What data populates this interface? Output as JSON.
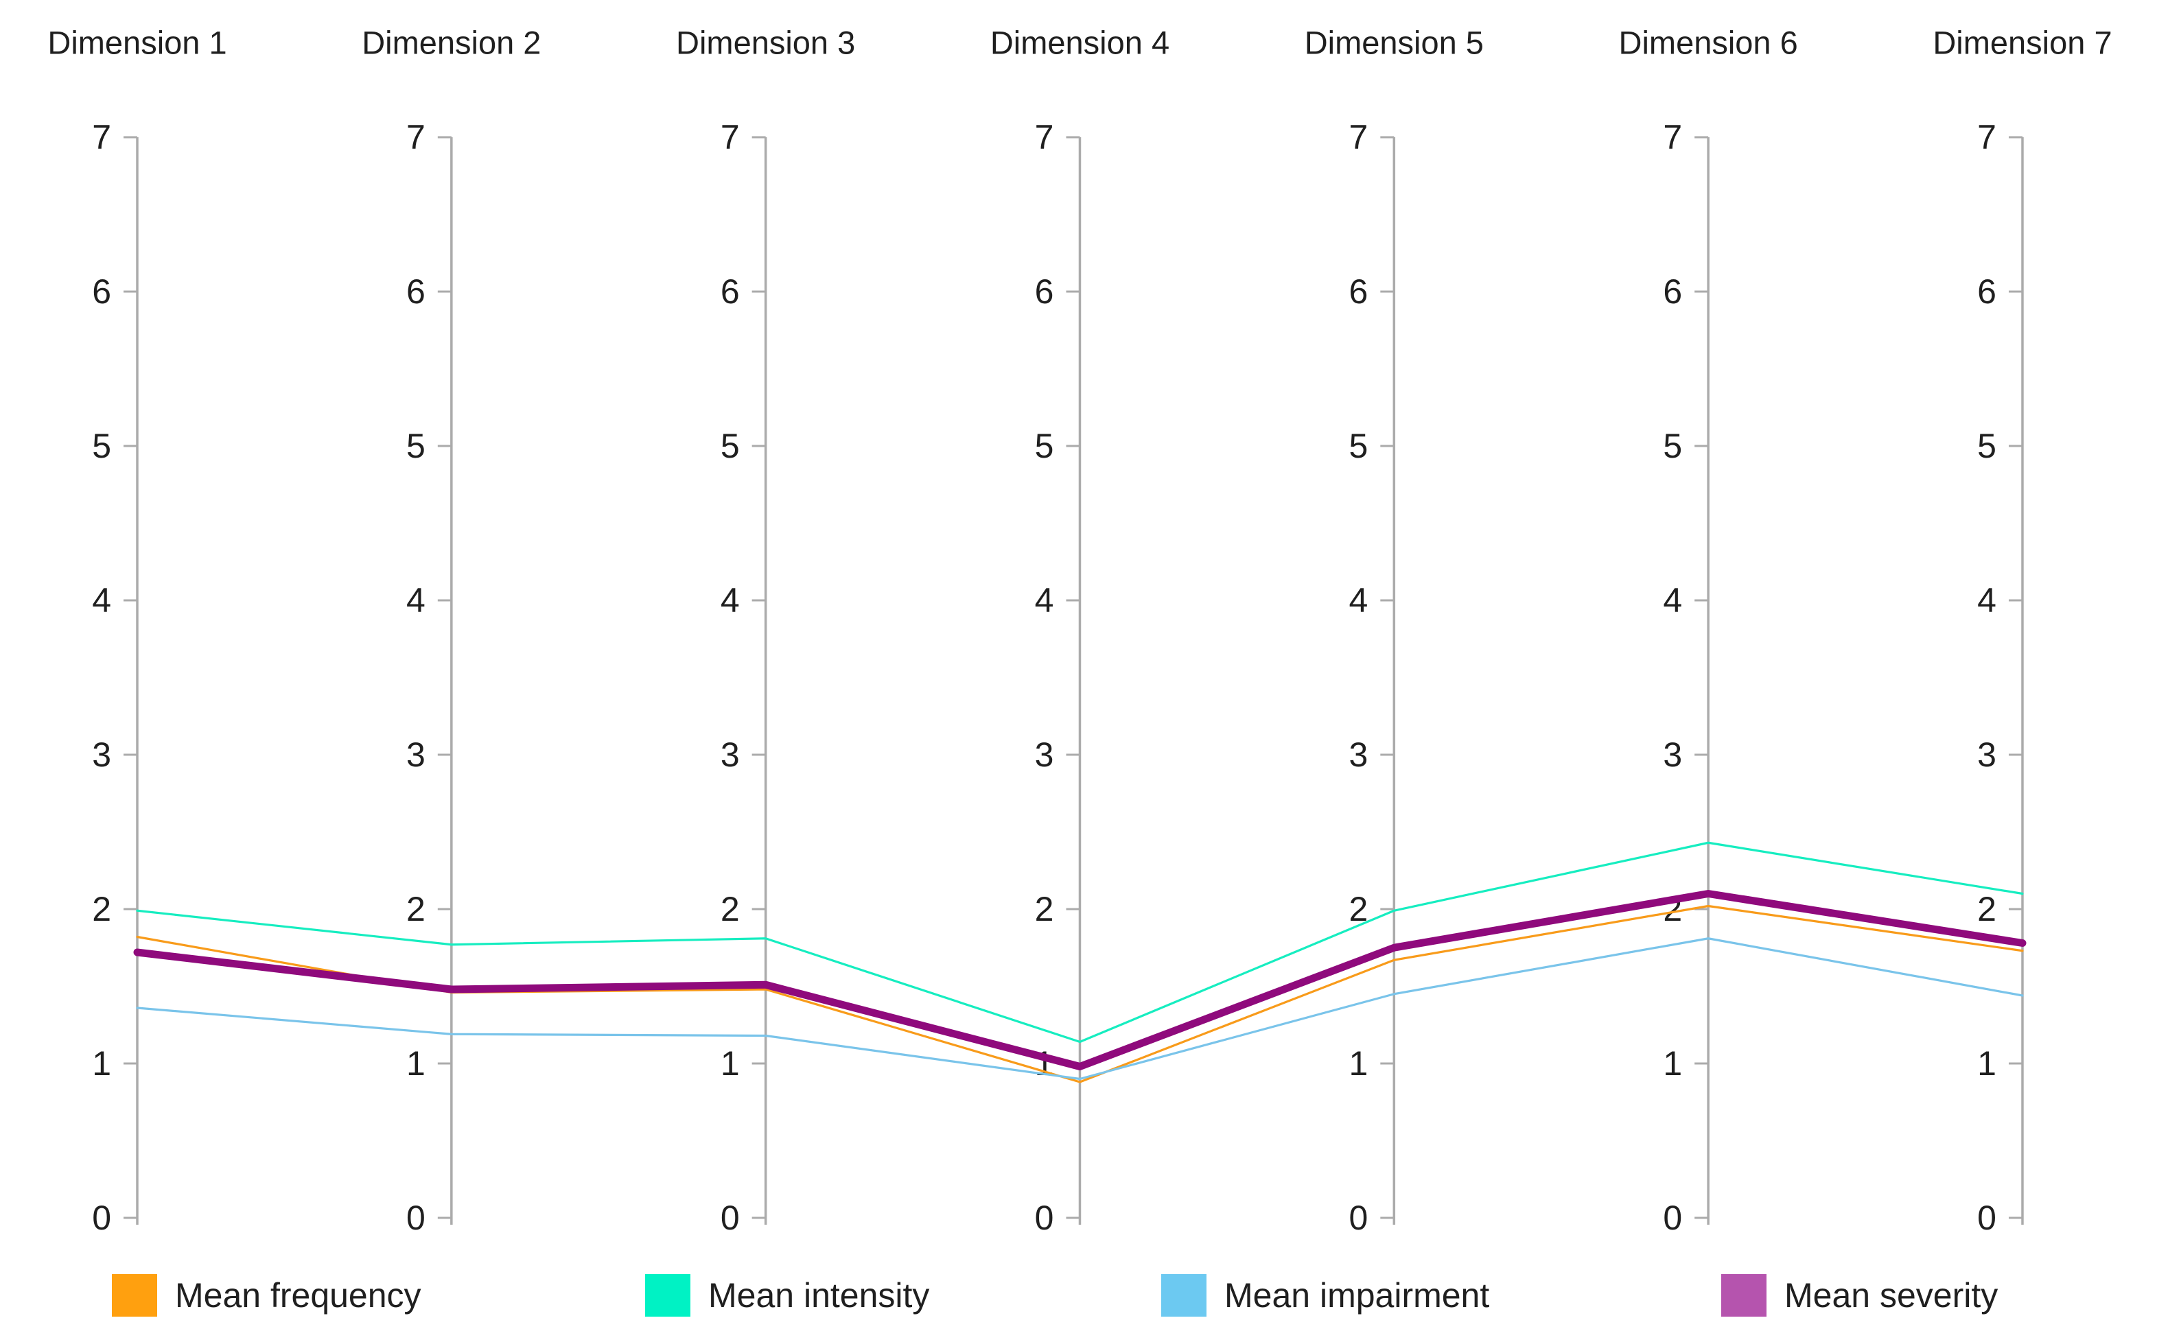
{
  "chart_data": {
    "type": "line",
    "variant": "parallel_coordinates",
    "title": "",
    "categories": [
      "Dimension 1",
      "Dimension 2",
      "Dimension 3",
      "Dimension 4",
      "Dimension 5",
      "Dimension 6",
      "Dimension 7"
    ],
    "axis": {
      "min": 0,
      "max": 7,
      "tick_step": 1,
      "tick_labels": [
        "0",
        "1",
        "2",
        "3",
        "4",
        "5",
        "6",
        "7"
      ],
      "axis_color": "#ABABAB",
      "per_category_axes": true
    },
    "grid": false,
    "background": "#FFFFFF",
    "legend_position": "bottom",
    "series": [
      {
        "name": "Mean frequency",
        "line_color": "#F89B1A",
        "legend_color": "#FFA00F",
        "line_width": 3.2,
        "values": [
          1.82,
          1.46,
          1.48,
          0.88,
          1.67,
          2.02,
          1.73
        ]
      },
      {
        "name": "Mean intensity",
        "line_color": "#16EDC0",
        "legend_color": "#00F2C4",
        "line_width": 3.2,
        "values": [
          1.99,
          1.77,
          1.81,
          1.14,
          1.99,
          2.43,
          2.1
        ]
      },
      {
        "name": "Mean impairment",
        "line_color": "#7AC4EA",
        "legend_color": "#6CC9F1",
        "line_width": 3.2,
        "values": [
          1.36,
          1.19,
          1.18,
          0.9,
          1.45,
          1.81,
          1.44
        ]
      },
      {
        "name": "Mean severity",
        "line_color": "#8F0A7C",
        "legend_color": "#B554AE",
        "line_width": 11,
        "values": [
          1.72,
          1.48,
          1.51,
          0.98,
          1.75,
          2.1,
          1.78
        ]
      }
    ],
    "text_color": "#1F1F1F"
  }
}
